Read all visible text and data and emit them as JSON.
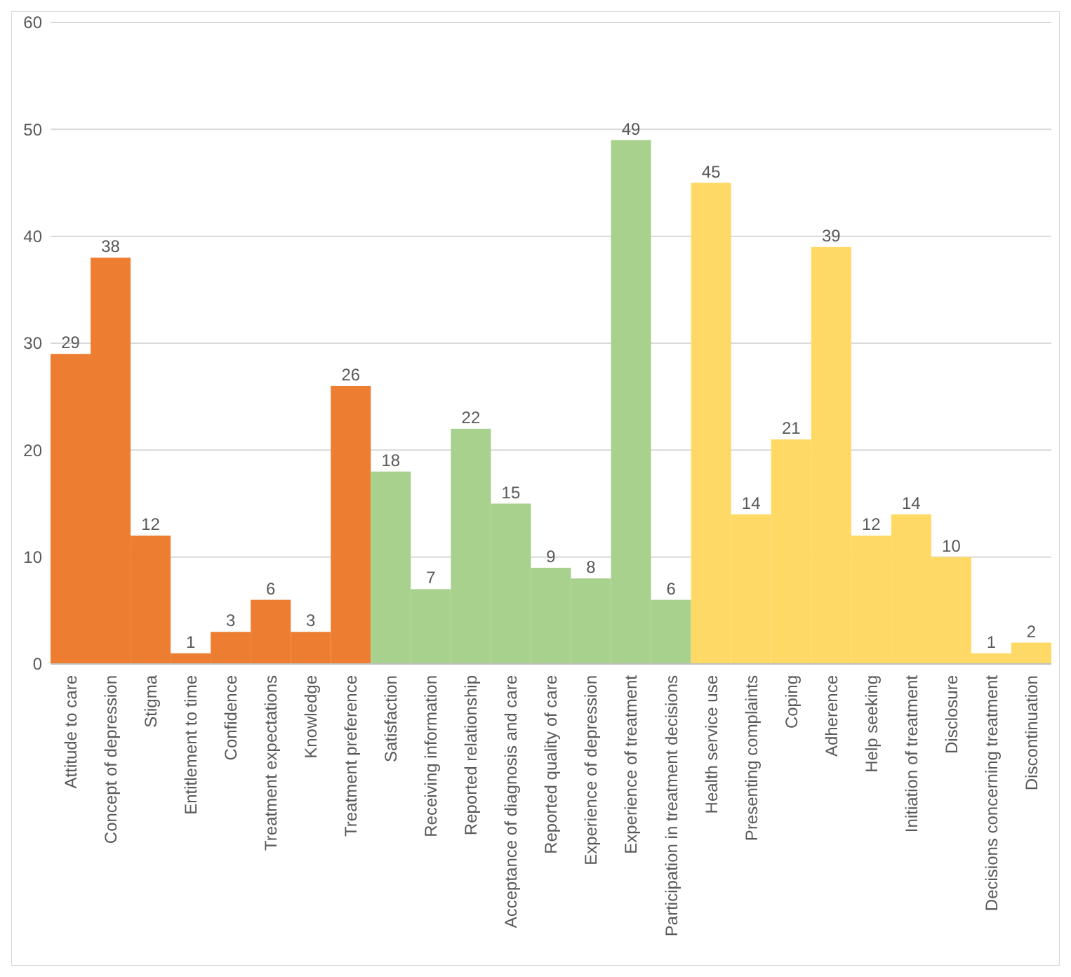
{
  "chart_data": {
    "type": "bar",
    "categories": [
      "Attitude to care",
      "Concept of depression",
      "Stigma",
      "Entitlement to time",
      "Confidence",
      "Treatment expectations",
      "Knowledge",
      "Treatment preference",
      "Satisfaction",
      "Receiving information",
      "Reported relationship",
      "Acceptance of diagnosis and care",
      "Reported quality of care",
      "Experience of depression",
      "Experience of treatment",
      "Participation in treatment decisions",
      "Health service use",
      "Presenting complaints",
      "Coping",
      "Adherence",
      "Help seeking",
      "Initiation of treatment",
      "Disclosure",
      "Decisions concerning treatment",
      "Discontinuation"
    ],
    "values": [
      29,
      38,
      12,
      1,
      3,
      6,
      3,
      26,
      18,
      7,
      22,
      15,
      9,
      8,
      49,
      6,
      45,
      14,
      21,
      39,
      12,
      14,
      10,
      1,
      2
    ],
    "colors": [
      "#ed7d31",
      "#ed7d31",
      "#ed7d31",
      "#ed7d31",
      "#ed7d31",
      "#ed7d31",
      "#ed7d31",
      "#ed7d31",
      "#a9d18e",
      "#a9d18e",
      "#a9d18e",
      "#a9d18e",
      "#a9d18e",
      "#a9d18e",
      "#a9d18e",
      "#a9d18e",
      "#ffd966",
      "#ffd966",
      "#ffd966",
      "#ffd966",
      "#ffd966",
      "#ffd966",
      "#ffd966",
      "#ffd966",
      "#ffd966"
    ],
    "ylim": [
      0,
      60
    ],
    "yticks": [
      0,
      10,
      20,
      30,
      40,
      50,
      60
    ],
    "grid": "y",
    "data_labels": true
  }
}
